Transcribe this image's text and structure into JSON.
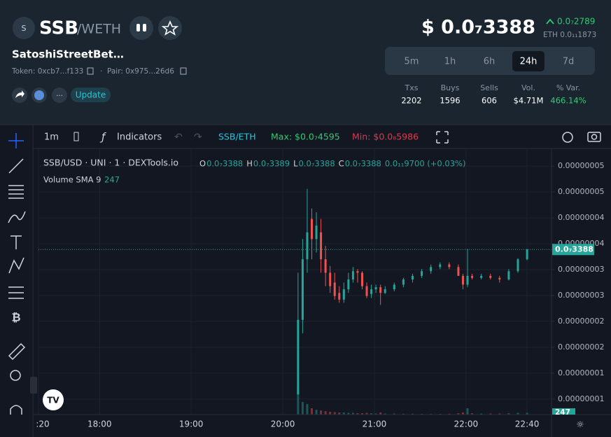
{
  "header": {
    "avatar": "S",
    "symbol": "SSB",
    "pair": "/WETH",
    "name": "SatoshiStreetBet…",
    "token": "Token: 0xcb7...f133",
    "pair_address": "Pair: 0x975...26d6",
    "more": "...",
    "update": "Update",
    "price": "$ 0.0₇3388",
    "change": "0.0₇2789",
    "eth_price": "ETH 0.0₁₁1873"
  },
  "tabs": [
    "5m",
    "1h",
    "6h",
    "24h",
    "7d"
  ],
  "active_tab": "24h",
  "stats": [
    {
      "label": "Txs",
      "value": "2202"
    },
    {
      "label": "Buys",
      "value": "1596"
    },
    {
      "label": "Sells",
      "value": "606"
    },
    {
      "label": "Vol.",
      "value": "$4.71M"
    },
    {
      "label": "% Var.",
      "value": "466.14%"
    }
  ],
  "toolbar": {
    "interval": "1m",
    "indicators": "Indicators",
    "pair": "SSB/ETH",
    "max": "Max: $0.0₇4595",
    "min": "Min: $0.0₈5986"
  },
  "legend": {
    "source": "SSB/USD · UNI · 1 · DEXTools.io",
    "ohlc": [
      {
        "k": "O",
        "v": "0.0₇3388"
      },
      {
        "k": "H",
        "v": "0.0₇3389"
      },
      {
        "k": "L",
        "v": "0.0₇3388"
      },
      {
        "k": "C",
        "v": "0.0₇3388"
      }
    ],
    "change": "0.0₁₁9700 (+0.03%)",
    "volume_name": "Volume SMA 9",
    "volume_value": "247"
  },
  "chart_data": {
    "type": "candlestick",
    "up_color": "#26a69a",
    "down_color": "#ef5350",
    "x": [
      1210,
      1213,
      1216,
      1219,
      1222,
      1225,
      1228,
      1231,
      1234,
      1237,
      1240,
      1243,
      1246,
      1249,
      1252,
      1255,
      1258,
      1261,
      1264,
      1267,
      1273,
      1279,
      1285,
      1291,
      1297,
      1303,
      1309,
      1315,
      1318,
      1321,
      1324,
      1330,
      1336,
      1342,
      1348,
      1354,
      1360
    ],
    "open": [
      5.9e-09,
      2.03e-08,
      3.2e-08,
      3.98e-08,
      3.59e-08,
      3.72e-08,
      3.2e-08,
      2.94e-08,
      2.75e-08,
      2.55e-08,
      2.42e-08,
      2.62e-08,
      2.81e-08,
      2.97e-08,
      2.94e-08,
      2.68e-08,
      2.53e-08,
      2.62e-08,
      2.66e-08,
      2.55e-08,
      2.62e-08,
      2.71e-08,
      2.81e-08,
      2.88e-08,
      2.97e-08,
      3.05e-08,
      3.1e-08,
      3.05e-08,
      2.88e-08,
      2.71e-08,
      2.88e-08,
      2.84e-08,
      2.88e-08,
      2.84e-08,
      2.81e-08,
      2.97e-08,
      3.2e-08
    ],
    "high": [
      2.94e-08,
      3.59e-08,
      4.56e-08,
      4.18e-08,
      4.11e-08,
      3.98e-08,
      3.46e-08,
      3.07e-08,
      2.94e-08,
      2.68e-08,
      2.75e-08,
      2.94e-08,
      3.05e-08,
      3.01e-08,
      2.97e-08,
      2.75e-08,
      2.71e-08,
      2.71e-08,
      2.71e-08,
      2.68e-08,
      2.75e-08,
      2.84e-08,
      2.92e-08,
      3.01e-08,
      3.1e-08,
      3.14e-08,
      3.14e-08,
      3.1e-08,
      2.92e-08,
      3.4e-08,
      2.92e-08,
      2.92e-08,
      2.92e-08,
      2.88e-08,
      3.01e-08,
      3.22e-08,
      3.4e-08
    ],
    "low": [
      5.9e-09,
      1.77e-08,
      2.94e-08,
      3.2e-08,
      3.33e-08,
      2.94e-08,
      2.68e-08,
      2.55e-08,
      2.42e-08,
      2.36e-08,
      2.36e-08,
      2.55e-08,
      2.75e-08,
      2.75e-08,
      2.62e-08,
      2.45e-08,
      2.45e-08,
      2.55e-08,
      2.32e-08,
      2.53e-08,
      2.58e-08,
      2.66e-08,
      2.75e-08,
      2.84e-08,
      2.92e-08,
      3.01e-08,
      3.01e-08,
      2.88e-08,
      2.62e-08,
      2.66e-08,
      2.81e-08,
      2.81e-08,
      2.81e-08,
      2.75e-08,
      2.79e-08,
      2.94e-08,
      3.18e-08
    ],
    "close": [
      2.03e-08,
      3.2e-08,
      3.72e-08,
      3.59e-08,
      3.85e-08,
      3.2e-08,
      2.94e-08,
      2.68e-08,
      2.49e-08,
      2.42e-08,
      2.62e-08,
      2.81e-08,
      2.97e-08,
      2.94e-08,
      2.68e-08,
      2.49e-08,
      2.62e-08,
      2.66e-08,
      2.55e-08,
      2.62e-08,
      2.71e-08,
      2.81e-08,
      2.88e-08,
      2.97e-08,
      3.05e-08,
      3.1e-08,
      3.05e-08,
      2.88e-08,
      2.71e-08,
      2.88e-08,
      2.84e-08,
      2.88e-08,
      2.84e-08,
      2.81e-08,
      2.97e-08,
      3.2e-08,
      3.388e-08
    ],
    "volume": [
      4000,
      1800,
      1500,
      900,
      700,
      600,
      500,
      400,
      350,
      300,
      300,
      250,
      250,
      200,
      200,
      250,
      200,
      150,
      300,
      150,
      150,
      120,
      120,
      100,
      100,
      100,
      120,
      200,
      300,
      900,
      200,
      150,
      150,
      150,
      200,
      250,
      247
    ],
    "vlim": [
      0,
      10000
    ],
    "xlim": [
      1040,
      1376
    ],
    "xticks": [
      {
        "value": 1040,
        "label": ":20"
      },
      {
        "value": 1080,
        "label": "18:00"
      },
      {
        "value": 1140,
        "label": "19:00"
      },
      {
        "value": 1200,
        "label": "20:00"
      },
      {
        "value": 1260,
        "label": "21:00"
      },
      {
        "value": 1320,
        "label": "22:00"
      },
      {
        "value": 1360,
        "label": "22:40"
      }
    ],
    "ylim": [
      2e-09,
      5.34e-08
    ],
    "yticks": [
      {
        "value": 5e-09,
        "label": "0.00000001"
      },
      {
        "value": 1e-08,
        "label": "0.00000001"
      },
      {
        "value": 1.5e-08,
        "label": "0.00000002"
      },
      {
        "value": 2e-08,
        "label": "0.00000002"
      },
      {
        "value": 2.5e-08,
        "label": "0.00000003"
      },
      {
        "value": 3e-08,
        "label": "0.00000003"
      },
      {
        "value": 3.5e-08,
        "label": "0.00000004"
      },
      {
        "value": 4e-08,
        "label": "0.00000004"
      },
      {
        "value": 4.5e-08,
        "label": "0.00000005"
      },
      {
        "value": 5e-08,
        "label": "0.00000005"
      }
    ],
    "price_label": "0.0₇3388",
    "volume_label": "247",
    "grid": true
  }
}
